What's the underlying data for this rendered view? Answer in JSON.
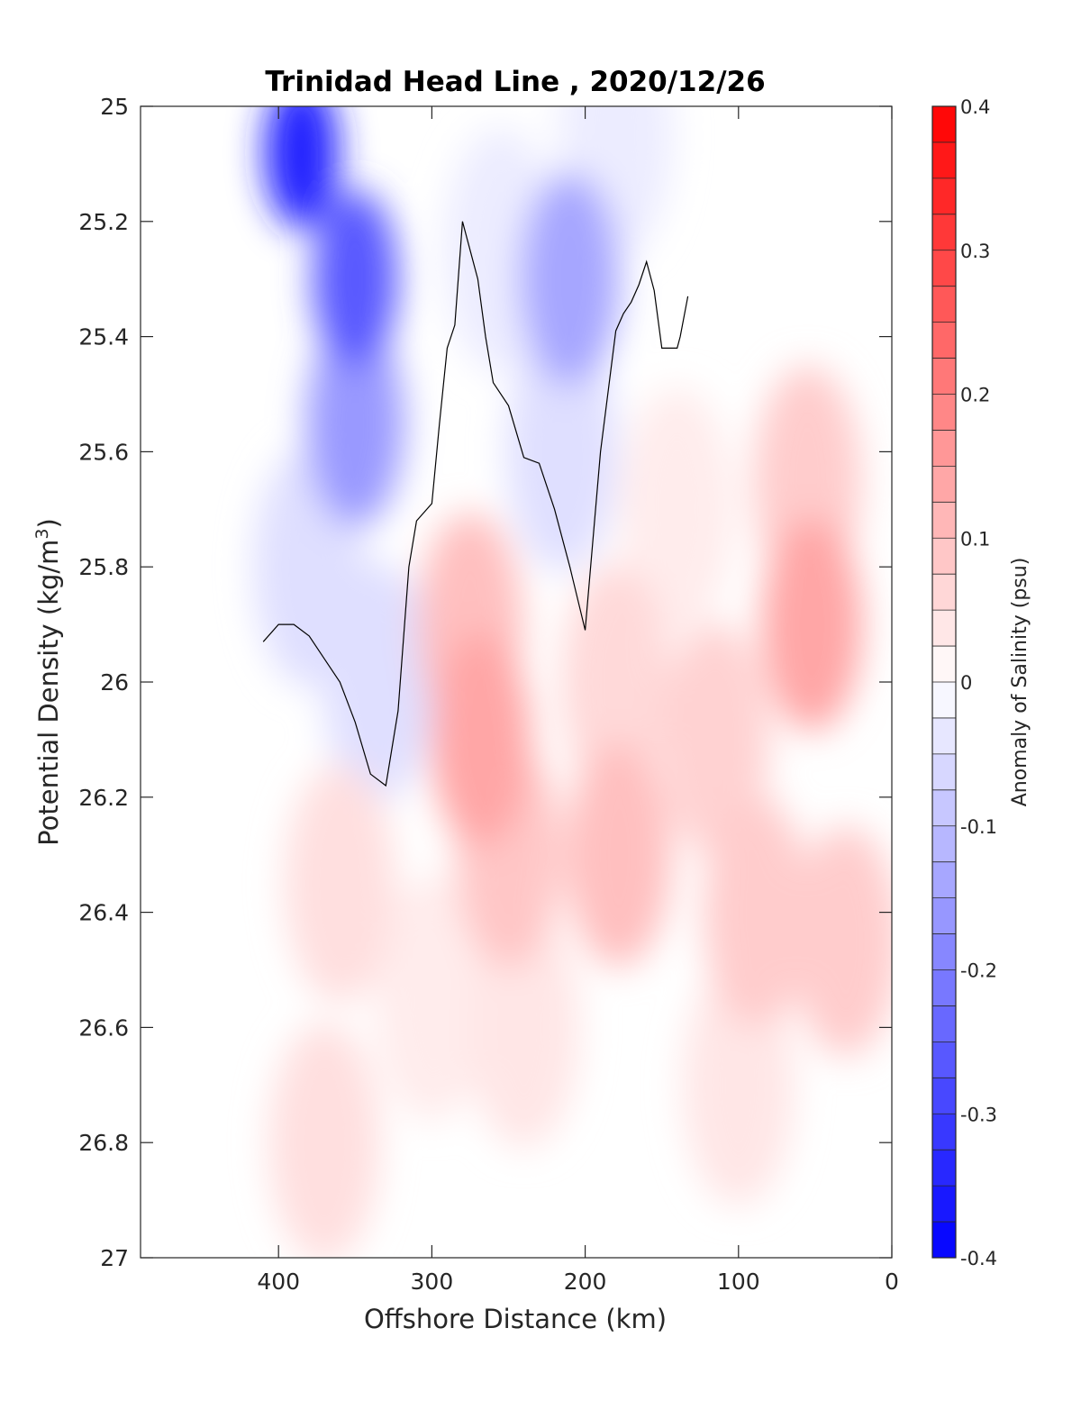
{
  "chart_data": {
    "type": "heatmap",
    "title": "Trinidad Head Line , 2020/12/26",
    "xlabel": "Offshore Distance (km)",
    "ylabel_prefix": "Potential Density (kg/m",
    "ylabel_sup": "3",
    "ylabel_suffix": ")",
    "xlim": [
      490,
      0
    ],
    "ylim": [
      27,
      25
    ],
    "x_reversed": true,
    "y_reversed": true,
    "x_ticks": [
      "400",
      "300",
      "200",
      "100",
      "0"
    ],
    "x_tick_values": [
      400,
      300,
      200,
      100,
      0
    ],
    "y_ticks": [
      "25",
      "25.2",
      "25.4",
      "25.6",
      "25.8",
      "26",
      "26.2",
      "26.4",
      "26.6",
      "26.8",
      "27"
    ],
    "y_tick_values": [
      25,
      25.2,
      25.4,
      25.6,
      25.8,
      26,
      26.2,
      26.4,
      26.6,
      26.8,
      27
    ],
    "colorbar": {
      "label": "Anomaly of Salinity (psu)",
      "clim": [
        -0.4,
        0.4
      ],
      "level_step": 0.025,
      "ticks": [
        "0.4",
        "0.3",
        "0.2",
        "0.1",
        "0",
        "-0.1",
        "-0.2",
        "-0.3",
        "-0.4"
      ],
      "tick_values": [
        0.4,
        0.3,
        0.2,
        0.1,
        0,
        -0.1,
        -0.2,
        -0.3,
        -0.4
      ],
      "colormap": "blue-white-red",
      "low_color": "#0000ff",
      "mid_color": "#ffffff",
      "high_color": "#ff0000"
    },
    "grid": false,
    "data_x_range_km": [
      410,
      20
    ],
    "anomaly_features": [
      {
        "x": 385,
        "y": 25.08,
        "value": -0.35
      },
      {
        "x": 350,
        "y": 25.3,
        "value": -0.26
      },
      {
        "x": 350,
        "y": 25.55,
        "value": -0.16
      },
      {
        "x": 380,
        "y": 25.8,
        "value": -0.05
      },
      {
        "x": 335,
        "y": 26.0,
        "value": -0.05
      },
      {
        "x": 210,
        "y": 25.3,
        "value": -0.14
      },
      {
        "x": 215,
        "y": 25.6,
        "value": -0.05
      },
      {
        "x": 255,
        "y": 25.25,
        "value": -0.03
      },
      {
        "x": 180,
        "y": 25.05,
        "value": -0.03
      },
      {
        "x": 268,
        "y": 26.1,
        "value": 0.14
      },
      {
        "x": 275,
        "y": 25.9,
        "value": 0.1
      },
      {
        "x": 250,
        "y": 26.3,
        "value": 0.09
      },
      {
        "x": 178,
        "y": 26.3,
        "value": 0.1
      },
      {
        "x": 180,
        "y": 26.0,
        "value": 0.06
      },
      {
        "x": 52,
        "y": 25.9,
        "value": 0.14
      },
      {
        "x": 55,
        "y": 25.65,
        "value": 0.08
      },
      {
        "x": 115,
        "y": 26.1,
        "value": 0.07
      },
      {
        "x": 88,
        "y": 26.4,
        "value": 0.08
      },
      {
        "x": 30,
        "y": 26.45,
        "value": 0.08
      },
      {
        "x": 360,
        "y": 26.35,
        "value": 0.05
      },
      {
        "x": 370,
        "y": 26.8,
        "value": 0.05
      },
      {
        "x": 240,
        "y": 26.6,
        "value": 0.04
      },
      {
        "x": 100,
        "y": 26.7,
        "value": 0.04
      },
      {
        "x": 300,
        "y": 26.55,
        "value": 0.03
      },
      {
        "x": 140,
        "y": 25.7,
        "value": 0.03
      }
    ],
    "zero_contour": {
      "x": [
        410,
        400,
        390,
        380,
        370,
        360,
        350,
        340,
        330,
        322,
        315,
        310,
        300,
        295,
        290,
        285,
        280,
        275,
        270,
        265,
        260,
        250,
        240,
        230,
        220,
        210,
        200,
        190,
        180,
        175,
        170,
        165,
        160,
        155,
        150,
        140,
        138,
        133
      ],
      "y": [
        25.93,
        25.9,
        25.9,
        25.92,
        25.96,
        26.0,
        26.07,
        26.16,
        26.18,
        26.05,
        25.8,
        25.72,
        25.69,
        25.55,
        25.42,
        25.38,
        25.2,
        25.25,
        25.3,
        25.4,
        25.48,
        25.52,
        25.61,
        25.62,
        25.7,
        25.8,
        25.91,
        25.6,
        25.39,
        25.36,
        25.34,
        25.31,
        25.27,
        25.32,
        25.42,
        25.42,
        25.4,
        25.33
      ]
    }
  }
}
